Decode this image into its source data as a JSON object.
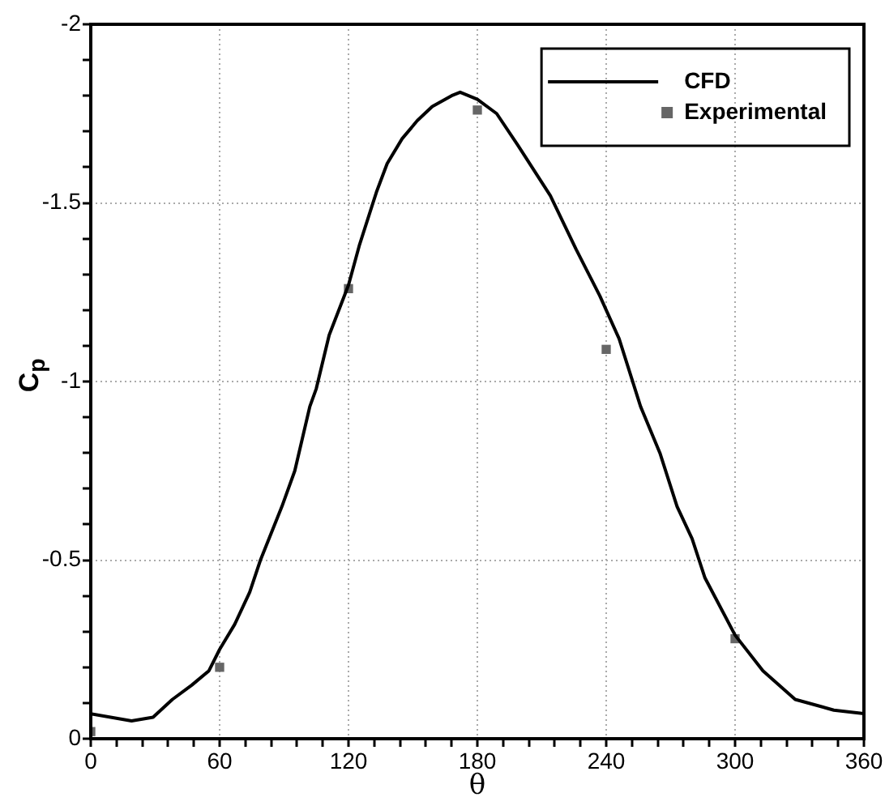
{
  "chart_data": {
    "type": "line",
    "xlabel": "θ",
    "ylabel": "C$_{p}$",
    "xlim": [
      0,
      360
    ],
    "xticks": [
      0,
      {
        "value": 12,
        "label": null
      },
      {
        "value": 24,
        "label": null
      },
      {
        "value": 36,
        "label": null
      },
      {
        "value": 48,
        "label": null
      },
      60,
      {
        "value": 72,
        "label": null
      },
      {
        "value": 84,
        "label": null
      },
      {
        "value": 96,
        "label": null
      },
      {
        "value": 108,
        "label": null
      },
      120,
      {
        "value": 132,
        "label": null
      },
      {
        "value": 144,
        "label": null
      },
      {
        "value": 156,
        "label": null
      },
      {
        "value": 168,
        "label": null
      },
      180,
      {
        "value": 192,
        "label": null
      },
      {
        "value": 204,
        "label": null
      },
      {
        "value": 216,
        "label": null
      },
      {
        "value": 228,
        "label": null
      },
      240,
      {
        "value": 252,
        "label": null
      },
      {
        "value": 264,
        "label": null
      },
      {
        "value": 276,
        "label": null
      },
      {
        "value": 288,
        "label": null
      },
      300,
      {
        "value": 312,
        "label": null
      },
      {
        "value": 324,
        "label": null
      },
      {
        "value": 336,
        "label": null
      },
      {
        "value": 348,
        "label": null
      },
      360
    ],
    "ylim": [
      0,
      -2
    ],
    "yticks": [
      0,
      {
        "value": -0.1,
        "label": null
      },
      {
        "value": -0.2,
        "label": null
      },
      {
        "value": -0.3,
        "label": null
      },
      {
        "value": -0.4,
        "label": null
      },
      -0.5,
      {
        "value": -0.6,
        "label": null
      },
      {
        "value": -0.7,
        "label": null
      },
      {
        "value": -0.8,
        "label": null
      },
      {
        "value": -0.9,
        "label": null
      },
      -1,
      {
        "value": -1.1,
        "label": null
      },
      {
        "value": -1.2,
        "label": null
      },
      {
        "value": -1.3,
        "label": null
      },
      {
        "value": -1.4,
        "label": null
      },
      -1.5,
      {
        "value": -1.6,
        "label": null
      },
      {
        "value": -1.7,
        "label": null
      },
      {
        "value": -1.8,
        "label": null
      },
      {
        "value": -1.9,
        "label": null
      },
      -2
    ],
    "grid": true,
    "legend": "top right",
    "series": [
      {
        "name": "CFD",
        "color": "#000000",
        "marker": "none",
        "line_style": "solid",
        "x": [
          0,
          19,
          29,
          38,
          47,
          55,
          60,
          67,
          74,
          79,
          89,
          95,
          102,
          105,
          111,
          120,
          125,
          133,
          138,
          145,
          152,
          159,
          168,
          172,
          180,
          189,
          199,
          214,
          226,
          237,
          246,
          256,
          265,
          273,
          280,
          286,
          300,
          313,
          328,
          346,
          360
        ],
        "values": [
          -0.07,
          -0.05,
          -0.06,
          -0.11,
          -0.15,
          -0.19,
          -0.25,
          -0.32,
          -0.41,
          -0.5,
          -0.65,
          -0.75,
          -0.93,
          -0.98,
          -1.13,
          -1.27,
          -1.38,
          -1.53,
          -1.61,
          -1.68,
          -1.73,
          -1.77,
          -1.8,
          -1.81,
          -1.79,
          -1.75,
          -1.66,
          -1.52,
          -1.37,
          -1.24,
          -1.12,
          -0.93,
          -0.8,
          -0.65,
          -0.56,
          -0.45,
          -0.29,
          -0.19,
          -0.11,
          -0.08,
          -0.07
        ]
      },
      {
        "name": "Experimental",
        "type": "scatter",
        "color": "#666666",
        "marker": "square",
        "x": [
          0,
          60,
          120,
          180,
          240,
          300
        ],
        "values": [
          -0.02,
          -0.2,
          -1.26,
          -1.76,
          -1.09,
          -0.28
        ]
      }
    ]
  }
}
